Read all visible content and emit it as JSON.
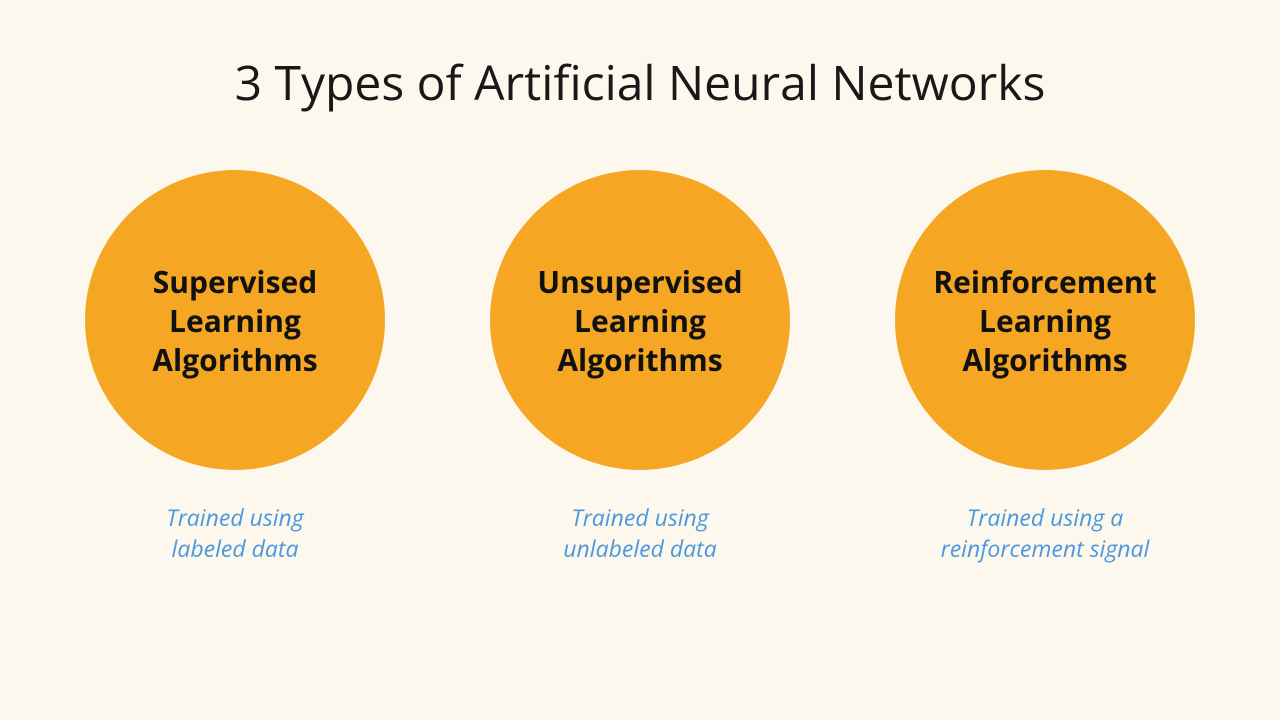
{
  "infographic": {
    "type": "infographic",
    "background_color": "#fdf8ed",
    "title": {
      "text": "3 Types of Artificial Neural Networks",
      "color": "#181818",
      "fontsize": 48,
      "fontweight": 400
    },
    "circle_style": {
      "diameter": 300,
      "fill_color": "#f5a623",
      "label_color": "#111111",
      "label_fontsize": 30,
      "label_fontweight": 700
    },
    "caption_style": {
      "color": "#4a98dd",
      "fontsize": 23,
      "fontstyle": "italic"
    },
    "items": [
      {
        "label": "Supervised\nLearning\nAlgorithms",
        "caption": "Trained using\nlabeled data"
      },
      {
        "label": "Unsupervised\nLearning\nAlgorithms",
        "caption": "Trained using\nunlabeled data"
      },
      {
        "label": "Reinforcement\nLearning\nAlgorithms",
        "caption": "Trained using a\nreinforcement signal"
      }
    ]
  }
}
